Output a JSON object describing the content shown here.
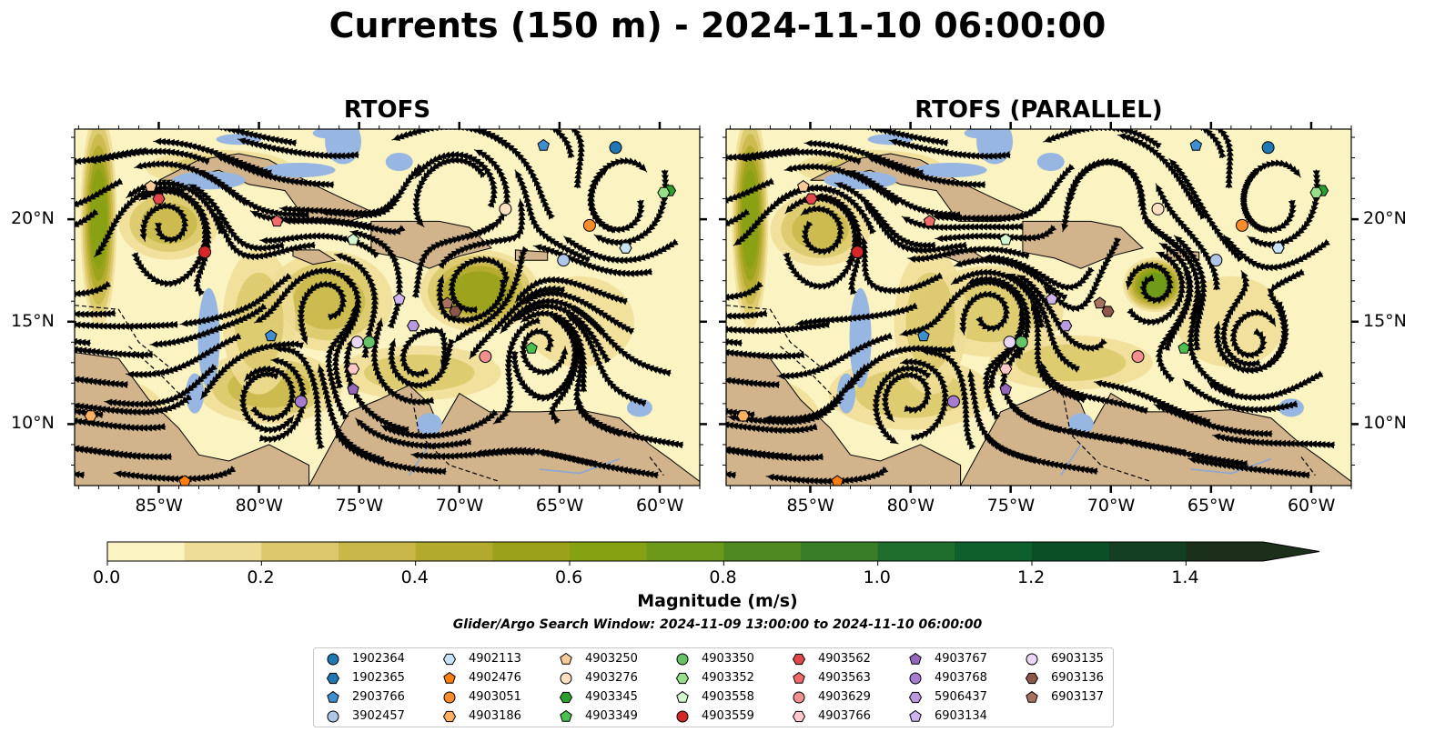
{
  "title": "Currents (150 m) - 2024-11-10 06:00:00",
  "panels": [
    {
      "title": "RTOFS"
    },
    {
      "title": "RTOFS (PARALLEL)"
    }
  ],
  "axes": {
    "lon_ticks": [
      "85°W",
      "80°W",
      "75°W",
      "70°W",
      "65°W",
      "60°W"
    ],
    "lat_ticks": [
      "20°N",
      "15°N",
      "10°N"
    ]
  },
  "colorbar": {
    "label": "Magnitude (m/s)",
    "ticks": [
      "0.0",
      "0.2",
      "0.4",
      "0.6",
      "0.8",
      "1.0",
      "1.2",
      "1.4"
    ],
    "levels": [
      0.0,
      0.1,
      0.2,
      0.3,
      0.4,
      0.5,
      0.6,
      0.7,
      0.8,
      0.9,
      1.0,
      1.1,
      1.2,
      1.3,
      1.4,
      1.5
    ],
    "colors": [
      "#fbf3c2",
      "#eedd96",
      "#dbc86a",
      "#c9b748",
      "#b1aa2c",
      "#9aa11a",
      "#86a112",
      "#6b9a1a",
      "#4f8a20",
      "#3a7d27",
      "#1e6d2c",
      "#0f5f2d",
      "#0b4f27",
      "#153f22",
      "#1b2f1a"
    ],
    "extend": "max"
  },
  "search_window": "Glider/Argo Search Window: 2024-11-09 13:00:00 to 2024-11-10 06:00:00",
  "colors": {
    "land": "#d2b48c",
    "shallow_water": "#97b6e1",
    "low_speed": "#fbf3c2"
  },
  "legend": [
    {
      "id": "1902364",
      "marker": "circle",
      "color": "#1f77b4"
    },
    {
      "id": "1902365",
      "marker": "hexagon",
      "color": "#1f77b4"
    },
    {
      "id": "2903766",
      "marker": "pentagon",
      "color": "#3f8fd0"
    },
    {
      "id": "3902457",
      "marker": "circle",
      "color": "#aec7e8"
    },
    {
      "id": "4902113",
      "marker": "hexagon",
      "color": "#c6e3f7"
    },
    {
      "id": "4902476",
      "marker": "pentagon",
      "color": "#ff7f0e"
    },
    {
      "id": "4903051",
      "marker": "circle",
      "color": "#ff8c2a"
    },
    {
      "id": "4903186",
      "marker": "hexagon",
      "color": "#ffb060"
    },
    {
      "id": "4903250",
      "marker": "pentagon",
      "color": "#ffcc99"
    },
    {
      "id": "4903276",
      "marker": "circle",
      "color": "#ffe0c2"
    },
    {
      "id": "4903345",
      "marker": "hexagon",
      "color": "#2ca02c"
    },
    {
      "id": "4903349",
      "marker": "pentagon",
      "color": "#4cc04c"
    },
    {
      "id": "4903350",
      "marker": "circle",
      "color": "#66c266"
    },
    {
      "id": "4903352",
      "marker": "hexagon",
      "color": "#98df8a"
    },
    {
      "id": "4903558",
      "marker": "pentagon",
      "color": "#d4f7d0"
    },
    {
      "id": "4903559",
      "marker": "circle",
      "color": "#d62728"
    },
    {
      "id": "4903562",
      "marker": "hexagon",
      "color": "#e0474c"
    },
    {
      "id": "4903563",
      "marker": "pentagon",
      "color": "#f06a6a"
    },
    {
      "id": "4903629",
      "marker": "circle",
      "color": "#f29090"
    },
    {
      "id": "4903766",
      "marker": "hexagon",
      "color": "#ffc9c9"
    },
    {
      "id": "4903767",
      "marker": "pentagon",
      "color": "#9467bd"
    },
    {
      "id": "4903768",
      "marker": "circle",
      "color": "#a57cd0"
    },
    {
      "id": "5906437",
      "marker": "hexagon",
      "color": "#b99ae0"
    },
    {
      "id": "6903134",
      "marker": "pentagon",
      "color": "#cfb4f0"
    },
    {
      "id": "6903135",
      "marker": "circle",
      "color": "#ead6f7"
    },
    {
      "id": "6903136",
      "marker": "hexagon",
      "color": "#8c564b"
    },
    {
      "id": "6903137",
      "marker": "pentagon",
      "color": "#a8705f"
    }
  ]
}
